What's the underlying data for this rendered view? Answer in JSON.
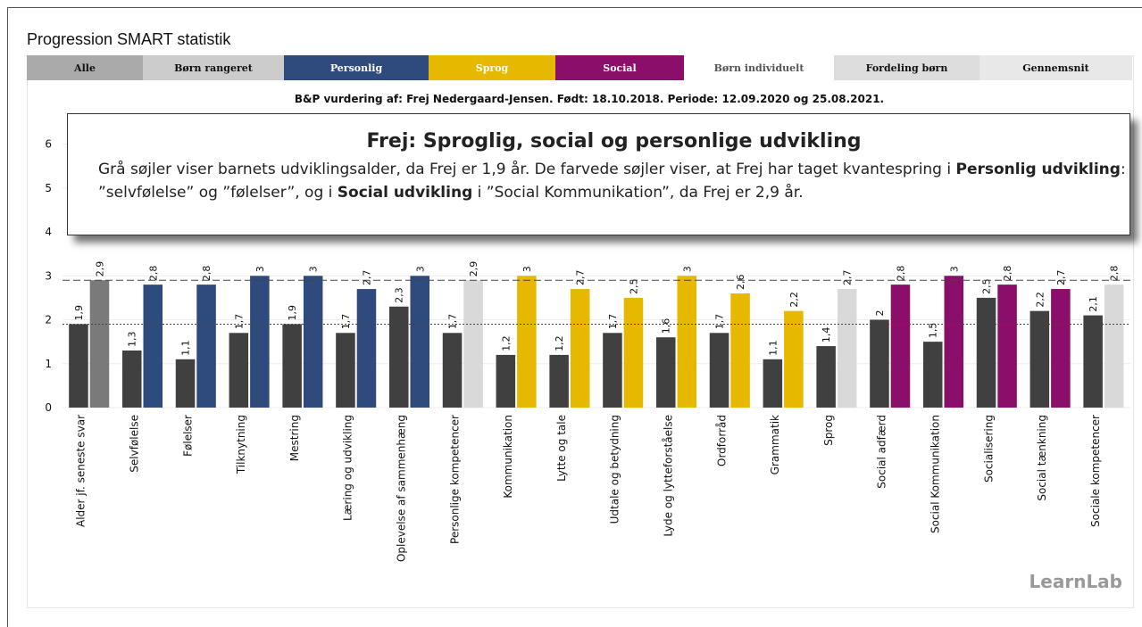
{
  "page_title": "Progression SMART statistik",
  "tabs": [
    "Alle",
    "Børn rangeret",
    "Personlig",
    "Sprog",
    "Social",
    "Børn individuelt",
    "Fordeling børn",
    "Gennemsnit"
  ],
  "callout": {
    "title": "Frej: Sproglig, social og personlige udvikling",
    "body": [
      "Grå søjler viser barnets udviklingsalder, da Frej er 1,9 år. De farvede søjler viser, at Frej har taget kvantespring i ",
      "Personlig udvikling",
      ": ”selvfølelse” og ”følelser”, og i ",
      "Social udvikling",
      " i ”Social Kommunikation”, da Frej er 2,9 år."
    ]
  },
  "logo": "LearnLab",
  "chart_data": {
    "type": "bar",
    "subtitle": "B&P vurdering af: Frej Nedergaard-Jensen. Født: 18.10.2018. Periode: 12.09.2020 og 25.08.2021.",
    "categories": [
      "Alder jf. seneste svar",
      "Selvfølelse",
      "Følelser",
      "Tilknytning",
      "Mestring",
      "Læring og udvikling",
      "Oplevelse af sammenhæng",
      "Personlige kompetencer",
      "Kommunikation",
      "Lytte og tale",
      "Udtale og betydning",
      "Lyde og lytteforståelse",
      "Ordforråd",
      "Grammatik",
      "Sprog",
      "Social adfærd",
      "Social Kommunikation",
      "Socialisering",
      "Social tænkning",
      "Sociale kompetencer"
    ],
    "series": [
      {
        "color": "#404040",
        "values": [
          1.9,
          1.3,
          1.1,
          1.7,
          1.9,
          1.7,
          2.3,
          1.7,
          1.2,
          1.2,
          1.7,
          1.6,
          1.7,
          1.1,
          1.4,
          2,
          1.5,
          2.5,
          2.2,
          2.1
        ],
        "value_labels": [
          "1,9",
          "1,3",
          "1,1",
          "1,7",
          "1,9",
          "1,7",
          "2,3",
          "1,7",
          "1,2",
          "1,2",
          "1,7",
          "1,6",
          "1,7",
          "1,1",
          "1,4",
          "2",
          "1,5",
          "2,5",
          "2,2",
          "2,1"
        ]
      },
      {
        "colors": [
          "#7a7a7a",
          "#2f4a7c",
          "#2f4a7c",
          "#2f4a7c",
          "#2f4a7c",
          "#2f4a7c",
          "#2f4a7c",
          "#d9d9d9",
          "#e6b800",
          "#e6b800",
          "#e6b800",
          "#e6b800",
          "#e6b800",
          "#e6b800",
          "#d9d9d9",
          "#8b0f6a",
          "#8b0f6a",
          "#8b0f6a",
          "#8b0f6a",
          "#d9d9d9"
        ],
        "values": [
          2.9,
          2.8,
          2.8,
          3,
          3,
          2.7,
          3,
          2.9,
          3,
          2.7,
          2.5,
          3,
          2.6,
          2.2,
          2.7,
          2.8,
          3,
          2.8,
          2.7,
          2.8
        ],
        "value_labels": [
          "2,9",
          "2,8",
          "2,8",
          "3",
          "3",
          "2,7",
          "3",
          "2,9",
          "3",
          "2,7",
          "2,5",
          "3",
          "2,6",
          "2,2",
          "2,7",
          "2,8",
          "3",
          "2,8",
          "2,7",
          "2,8"
        ]
      }
    ],
    "hlines": [
      {
        "value": 2.9,
        "style": "dashed"
      },
      {
        "value": 1.9,
        "style": "dotted"
      }
    ],
    "ylim": [
      0,
      6.6
    ],
    "yticks": [
      0,
      1,
      2,
      3,
      4,
      5,
      6
    ],
    "grid": true
  }
}
